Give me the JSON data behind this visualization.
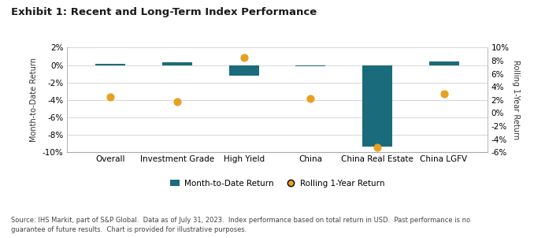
{
  "title": "Exhibit 1: Recent and Long-Term Index Performance",
  "categories": [
    "Overall",
    "Investment Grade",
    "High Yield",
    "China",
    "China Real Estate",
    "China LGFV"
  ],
  "mtd_values": [
    0.15,
    0.35,
    -1.2,
    -0.1,
    -9.3,
    0.45
  ],
  "rolling_values": [
    2.5,
    1.7,
    8.5,
    2.2,
    -5.2,
    3.0
  ],
  "bar_color": "#1a6b7c",
  "dot_color": "#e8a020",
  "left_ylabel": "Month-to-Date Return",
  "right_ylabel": "Rolling 1-Year Return",
  "left_ylim": [
    -10,
    2
  ],
  "right_ylim": [
    -6,
    10
  ],
  "left_yticks": [
    -10,
    -8,
    -6,
    -4,
    -2,
    0,
    2
  ],
  "right_yticks": [
    -6,
    -4,
    -2,
    0,
    2,
    4,
    6,
    8,
    10
  ],
  "legend_labels": [
    "Month-to-Date Return",
    "Rolling 1-Year Return"
  ],
  "source_text": "Source: IHS Markit, part of S&P Global.  Data as of July 31, 2023.  Index performance based on total return in USD.  Past performance is no\nguarantee of future results.  Chart is provided for illustrative purposes.",
  "background_color": "#ffffff",
  "grid_color": "#d0d0d0"
}
